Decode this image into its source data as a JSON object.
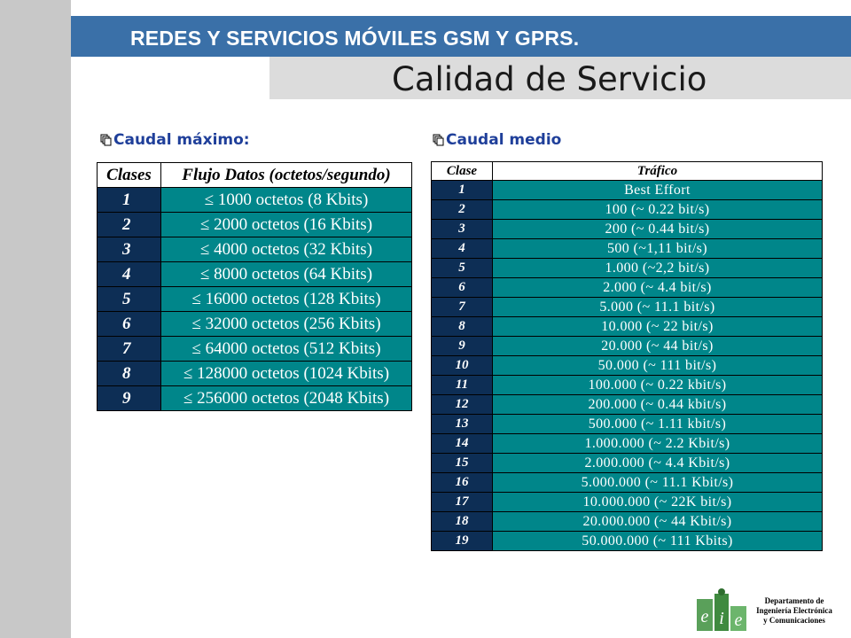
{
  "header": {
    "title": "REDES Y SERVICIOS MÓVILES GSM Y GPRS.",
    "subtitle": "Calidad de Servicio"
  },
  "left_section": {
    "heading": "Caudal máximo:",
    "columns": [
      "Clases",
      "Flujo Datos (octetos/segundo)"
    ],
    "rows": [
      {
        "clase": "1",
        "flujo": "≤ 1000 octetos (8 Kbits)"
      },
      {
        "clase": "2",
        "flujo": "≤ 2000 octetos (16 Kbits)"
      },
      {
        "clase": "3",
        "flujo": "≤ 4000 octetos (32 Kbits)"
      },
      {
        "clase": "4",
        "flujo": "≤ 8000 octetos (64 Kbits)"
      },
      {
        "clase": "5",
        "flujo": "≤ 16000 octetos (128 Kbits)"
      },
      {
        "clase": "6",
        "flujo": "≤ 32000 octetos (256 Kbits)"
      },
      {
        "clase": "7",
        "flujo": "≤ 64000 octetos (512 Kbits)"
      },
      {
        "clase": "8",
        "flujo": "≤ 128000 octetos (1024 Kbits)"
      },
      {
        "clase": "9",
        "flujo": "≤ 256000 octetos (2048 Kbits)"
      }
    ]
  },
  "right_section": {
    "heading": "Caudal medio",
    "columns": [
      "Clase",
      "Tráfico"
    ],
    "rows": [
      {
        "clase": "1",
        "trafico": "Best Effort"
      },
      {
        "clase": "2",
        "trafico": "100 (~ 0.22 bit/s)"
      },
      {
        "clase": "3",
        "trafico": "200 (~ 0.44 bit/s)"
      },
      {
        "clase": "4",
        "trafico": "500 (~1,11  bit/s)"
      },
      {
        "clase": "5",
        "trafico": "1.000 (~2,2 bit/s)"
      },
      {
        "clase": "6",
        "trafico": "2.000 (~ 4.4 bit/s)"
      },
      {
        "clase": "7",
        "trafico": "5.000 (~ 11.1 bit/s)"
      },
      {
        "clase": "8",
        "trafico": "10.000 (~ 22 bit/s)"
      },
      {
        "clase": "9",
        "trafico": "20.000 (~ 44 bit/s)"
      },
      {
        "clase": "10",
        "trafico": "50.000 (~ 111 bit/s)"
      },
      {
        "clase": "11",
        "trafico": "100.000 (~ 0.22 kbit/s)"
      },
      {
        "clase": "12",
        "trafico": "200.000 (~ 0.44 kbit/s)"
      },
      {
        "clase": "13",
        "trafico": "500.000 (~ 1.11 kbit/s)"
      },
      {
        "clase": "14",
        "trafico": "1.000.000 (~ 2.2 Kbit/s)"
      },
      {
        "clase": "15",
        "trafico": "2.000.000 (~ 4.4 Kbit/s)"
      },
      {
        "clase": "16",
        "trafico": "5.000.000 (~ 11.1 Kbit/s)"
      },
      {
        "clase": "17",
        "trafico": "10.000.000  (~ 22K bit/s)"
      },
      {
        "clase": "18",
        "trafico": "20.000.000 (~ 44 Kbit/s)"
      },
      {
        "clase": "19",
        "trafico": "50.000.000 (~ 111 Kbits)"
      }
    ]
  },
  "footer": {
    "dept_line1": "Departamento de",
    "dept_line2": "Ingeniería Electrónica",
    "dept_line3": "y Comunicaciones",
    "logo_letters": "eie"
  },
  "colors": {
    "title_band": "#3a70a8",
    "table_teal": "#00868a",
    "class_cell_navy": "#0d2e55",
    "heading_blue": "#1f3f9a"
  }
}
